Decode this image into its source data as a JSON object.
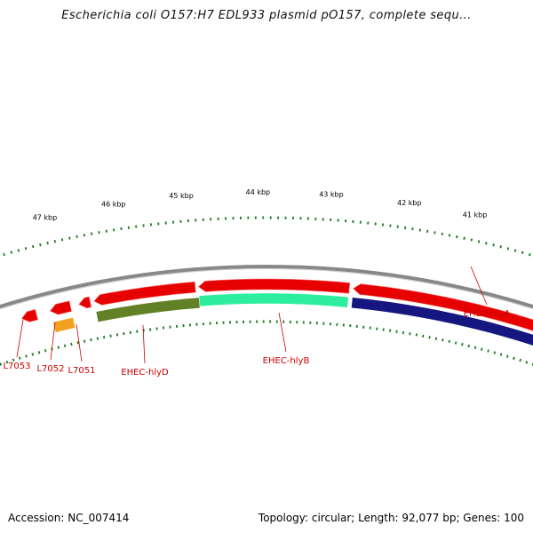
{
  "title": "Escherichia coli O157:H7 EDL933 plasmid pO157, complete sequ...",
  "scale_labels": [
    "41 kbp",
    "42 kbp",
    "43 kbp",
    "44 kbp",
    "45 kbp",
    "46 kbp",
    "47 kbp"
  ],
  "genes": [
    {
      "label": "EHEC-hlyA",
      "strand": "forward",
      "color": "#e60000"
    },
    {
      "label": "EHEC-hlyB",
      "strand": "forward",
      "color": "#e60000"
    },
    {
      "label": "EHEC-hlyD",
      "strand": "forward",
      "color": "#e60000"
    },
    {
      "label": "L7051",
      "strand": "forward",
      "color": "#e60000"
    },
    {
      "label": "L7052",
      "strand": "forward",
      "color": "#e60000"
    },
    {
      "label": "L7053",
      "strand": "forward",
      "color": "#e60000"
    }
  ],
  "feature_tracks": [
    {
      "gene": "EHEC-hlyA",
      "color": "#0a0a7a"
    },
    {
      "gene": "EHEC-hlyB",
      "color": "#22ee99"
    },
    {
      "gene": "EHEC-hlyD",
      "color": "#5a7a1a"
    },
    {
      "gene": "L7052",
      "color": "#f39c12"
    }
  ],
  "colors": {
    "backbone": "#888888",
    "cds": "#e60000",
    "tick": "#1a7a1a",
    "label": "#cc0000"
  },
  "footer": {
    "accession": "Accession: NC_007414",
    "summary": "Topology: circular; Length: 92,077 bp; Genes: 100"
  }
}
